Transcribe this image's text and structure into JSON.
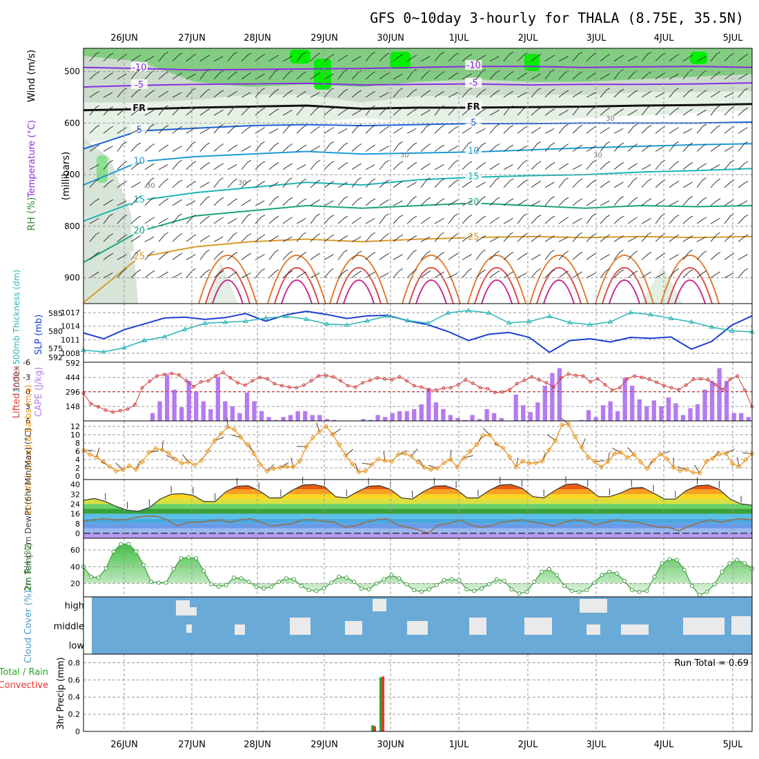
{
  "title": "GFS 0~10day 3-hourly for THALA (8.75E, 35.5N)",
  "colors": {
    "temp_contour": "#8a2be2",
    "fr": "#000000",
    "rh_light": "#e2efe2",
    "rh_mid": "#c8d8c8",
    "rh_green": "#7acb7a",
    "rh_bright": "#00ee00",
    "slp": "#1a3ed0",
    "thickness": "#2ab5b5",
    "lifted": "#d33a3a",
    "cape": "#b57af0",
    "wind": "#e8941c",
    "dewpt": "#9a6a3a",
    "rh2m": "#3c9a3c",
    "cloud_fill": "#6aaad6",
    "precip_total": "#22aa22",
    "precip_conv": "#ee3333",
    "grid": "#999999"
  },
  "chart_data": [
    {
      "id": "upper_air",
      "type": "heatmap",
      "x_dates": [
        "26JUN",
        "27JUN",
        "28JUN",
        "29JUN",
        "30JUN",
        "1JUL",
        "2JUL",
        "3JUL",
        "4JUL",
        "5JUL"
      ],
      "ylabel_parts": [
        "RH (%)",
        "Temperature (°C)",
        "Wind (m/s)",
        "(millibars)"
      ],
      "yticks": [
        500,
        600,
        700,
        800,
        900
      ],
      "ylim": [
        950,
        455
      ],
      "contours": [
        {
          "label": "-10",
          "pressure": [
            492,
            494,
            497,
            496,
            495,
            494,
            492,
            490,
            490,
            492,
            491,
            490,
            492
          ],
          "label_positions": [
            "26JUN-27JUN",
            "29JUN-30JUN"
          ]
        },
        {
          "label": "-5",
          "pressure": [
            530,
            527,
            525,
            524,
            523,
            526,
            525,
            524,
            526,
            525,
            525,
            524,
            522
          ],
          "label_positions": [
            "27JUN-28JUN",
            "2JUL-3JUL"
          ]
        },
        {
          "label": "FR",
          "pressure": [
            575,
            573,
            570,
            568,
            566,
            572,
            570,
            570,
            569,
            568,
            566,
            565,
            563
          ],
          "label_positions": [
            "28JUN",
            "2JUL-3JUL"
          ]
        },
        {
          "label": "5",
          "pressure": [
            650,
            615,
            610,
            605,
            603,
            605,
            603,
            601,
            601,
            600,
            600,
            600,
            598
          ],
          "label_positions": [
            "28JUN",
            "1JUL-2JUL"
          ]
        },
        {
          "label": "10",
          "pressure": [
            720,
            675,
            665,
            660,
            655,
            660,
            658,
            656,
            652,
            648,
            645,
            642,
            640
          ],
          "label_positions": [
            "27JUN-28JUN",
            "2JUL"
          ]
        },
        {
          "label": "15",
          "pressure": [
            790,
            750,
            735,
            725,
            715,
            720,
            710,
            705,
            702,
            700,
            695,
            692,
            688
          ],
          "label_positions": [
            "2JUL"
          ]
        },
        {
          "label": "20",
          "pressure": [
            870,
            810,
            780,
            770,
            760,
            765,
            760,
            755,
            760,
            765,
            760,
            762,
            760
          ],
          "label_positions": [
            "27JUN",
            "2JUL-3JUL"
          ]
        },
        {
          "label": "25",
          "pressure": [
            948,
            860,
            840,
            830,
            825,
            830,
            825,
            822,
            820,
            822,
            820,
            822,
            820
          ],
          "label_positions": [
            "28JUN",
            "3JUL"
          ]
        }
      ],
      "rh_labels": [
        "30",
        "30",
        "30",
        "30",
        "30"
      ]
    },
    {
      "id": "slp_thickness",
      "type": "line",
      "ylabel_left": "1000~500mb Thickness (dm)",
      "ylabel_right": "SLP (mb)",
      "yticks_left": [
        "585",
        "580",
        "575",
        "592"
      ],
      "yticks_right": [
        "1017",
        "1014",
        "1011",
        "1008"
      ],
      "series": [
        {
          "name": "SLP",
          "unit": "mb",
          "values": [
            1012.5,
            1011.2,
            1013.2,
            1014.5,
            1015.8,
            1016,
            1015.5,
            1015.9,
            1016.8,
            1015.1,
            1016.5,
            1017.3,
            1016.6,
            1015.7,
            1016.3,
            1016.4,
            1015.2,
            1014.3,
            1012.8,
            1010.8,
            1012.2,
            1012.6,
            1011.5,
            1008.2,
            1010.8,
            1011.2,
            1010.5,
            1011.5,
            1011.3,
            1011.6,
            1008.9,
            1010.6,
            1014.2,
            1016.3
          ]
        },
        {
          "name": "Thickness",
          "unit": "dm",
          "values": [
            574.5,
            574.0,
            575.2,
            577.3,
            578.4,
            580.5,
            582.3,
            582.6,
            582.9,
            583.8,
            584.3,
            583.5,
            582.1,
            581.8,
            583.0,
            584.4,
            583.1,
            582.3,
            585.3,
            586.0,
            585.3,
            582.4,
            582.8,
            584.3,
            582.5,
            581.9,
            582.7,
            585.4,
            584.8,
            583.7,
            582.7,
            581.2,
            580.1,
            579.8
          ]
        }
      ]
    },
    {
      "id": "cape_li",
      "type": "bar",
      "ylabel_left": "Lifted Index",
      "ylabel_right": "CAPE (J/kg)",
      "yticks_left": [
        "-6",
        "-3",
        "0",
        "3",
        "6"
      ],
      "yticks_right": [
        "592",
        "444",
        "296",
        "148"
      ],
      "series": [
        {
          "name": "CAPE",
          "unit": "J/kg",
          "values": [
            0,
            0,
            0,
            0,
            0,
            0,
            0,
            0,
            0,
            80,
            200,
            470,
            320,
            140,
            410,
            300,
            200,
            120,
            450,
            200,
            150,
            80,
            290,
            200,
            100,
            40,
            10,
            40,
            60,
            100,
            100,
            60,
            60,
            20,
            10,
            0,
            0,
            0,
            20,
            10,
            60,
            40,
            80,
            100,
            100,
            120,
            170,
            330,
            190,
            120,
            60,
            30,
            10,
            60,
            20,
            120,
            80,
            30,
            0,
            270,
            160,
            90,
            190,
            360,
            490,
            540,
            0,
            0,
            10,
            110,
            40,
            160,
            200,
            100,
            440,
            360,
            220,
            150,
            210,
            150,
            240,
            180,
            60,
            130,
            170,
            320,
            410,
            540,
            410,
            80,
            80,
            40
          ]
        },
        {
          "name": "Lifted Index",
          "unit": "",
          "values": [
            0.3,
            2.5,
            3.1,
            3.8,
            4.2,
            3.9,
            3.6,
            2.7,
            -0.8,
            -2.1,
            -3.2,
            -3.5,
            -3.7,
            -3.4,
            -2.2,
            -1.0,
            -2.0,
            -2.2,
            -3.2,
            -3.9,
            -2.8,
            -1.8,
            -1.3,
            -2.2,
            -2.9,
            -2.6,
            -1.6,
            -1.2,
            -0.9,
            -0.8,
            -1.3,
            -2.2,
            -3.2,
            -3.3,
            -3.0,
            -2.2,
            -1.2,
            -0.9,
            -1.8,
            -2.3,
            -2.8,
            -2.6,
            -2.4,
            -3.0,
            -2.2,
            -1.2,
            -0.9,
            -0.4,
            -0.3,
            -0.7,
            -0.8,
            -1.4,
            -2.4,
            -1.7,
            -0.8,
            -0.6,
            0.2,
            0.1,
            -0.4,
            -1.6,
            -2.3,
            -3.0,
            -2.4,
            -1.8,
            -0.9,
            -2.8,
            -3.6,
            -3.3,
            -3.2,
            -2.0,
            -2.6,
            -1.4,
            -0.3,
            -0.8,
            -2.6,
            -3.2,
            -2.9,
            -2.5,
            -1.9,
            -1.2,
            -0.8,
            -0.4,
            -1.3,
            -2.5,
            -2.6,
            -2.4,
            -1.4,
            -0.4,
            -2.5,
            -3.2,
            -0.3,
            3.1
          ]
        }
      ]
    },
    {
      "id": "wind10m",
      "type": "line",
      "ylabel": "10m Wind Speed & Barbs (m/s)",
      "yticks": [
        "0",
        "2",
        "4",
        "6",
        "8",
        "10",
        "12"
      ],
      "ylim": [
        0,
        12.5
      ],
      "series": [
        {
          "name": "10m Wind Speed",
          "unit": "m/s",
          "values": [
            6.2,
            5.2,
            4.6,
            3.5,
            2.3,
            1.2,
            1.6,
            2.5,
            1.6,
            3.5,
            5.7,
            6.7,
            6.3,
            5.5,
            4.1,
            3.1,
            3.4,
            2.7,
            3.8,
            6.1,
            8.6,
            10.3,
            11.8,
            11.3,
            9.4,
            7.6,
            5.4,
            2.8,
            1.2,
            1.8,
            2.1,
            2.3,
            2.2,
            3.6,
            7.1,
            9.3,
            10.7,
            12.0,
            10.1,
            7.6,
            5.0,
            2.9,
            1.0,
            1.2,
            2.8,
            4.1,
            3.7,
            3.5,
            5.2,
            5.5,
            4.8,
            3.4,
            2.1,
            1.6,
            1.9,
            3.2,
            4.0,
            2.2,
            4.4,
            6.0,
            7.6,
            9.8,
            9.9,
            7.8,
            6.8,
            4.7,
            2.2,
            3.6,
            3.1,
            3.2,
            3.6,
            6.3,
            8.6,
            12.4,
            12.6,
            9.5,
            6.9,
            4.6,
            3.5,
            2.2,
            3.5,
            5.4,
            5.7,
            4.5,
            5.2,
            3.4,
            1.8,
            3.8,
            5.3,
            4.2,
            2.1,
            1.3,
            1.6,
            0.9,
            0.7,
            3.5,
            4.3,
            5.3,
            5.5,
            3.0,
            2.3,
            3.9,
            5.4
          ]
        }
      ]
    },
    {
      "id": "temp2m",
      "type": "area",
      "ylabel": "2m Temp 2m DewPt (6hr Min/Max) (°C)",
      "yticks": [
        "0",
        "8",
        "16",
        "24",
        "32",
        "40"
      ],
      "ylim": [
        -4,
        44
      ],
      "series": [
        {
          "name": "2m Temp",
          "unit": "°C",
          "values": [
            27,
            28.5,
            26,
            22,
            19,
            18,
            21,
            28,
            32,
            32.5,
            31,
            26,
            26,
            34,
            38.5,
            39,
            35,
            29,
            29,
            35,
            39.5,
            40,
            38,
            30,
            29,
            34,
            38.5,
            39,
            36,
            29,
            28,
            34,
            38.5,
            39,
            36,
            29,
            29,
            35,
            39.5,
            40,
            37,
            30,
            29,
            35,
            40,
            40.5,
            37,
            30,
            30,
            33,
            37,
            37.5,
            33,
            28,
            28,
            35,
            39,
            39.5,
            36,
            28,
            24,
            23
          ]
        },
        {
          "name": "2m DewPt",
          "unit": "°C",
          "values": [
            10,
            11,
            12,
            11,
            11,
            13,
            14,
            14,
            11,
            6,
            9,
            9,
            10,
            11,
            9,
            11,
            12,
            9,
            6,
            7,
            8,
            11,
            11,
            10,
            9,
            5,
            6,
            9,
            11,
            12,
            7,
            5,
            3,
            0,
            7,
            8,
            11,
            7,
            5,
            6,
            9,
            10,
            11,
            9,
            8,
            6,
            9,
            11,
            10,
            7,
            9,
            11,
            10,
            9,
            7,
            5,
            5,
            2,
            6,
            9,
            11,
            9,
            11,
            12,
            11
          ]
        }
      ]
    },
    {
      "id": "rh2m",
      "type": "area",
      "ylabel": "2m RH (%)",
      "yticks": [
        "20",
        "40",
        "60"
      ],
      "ylim": [
        4,
        74
      ],
      "series": [
        {
          "name": "2m RH",
          "unit": "%",
          "values": [
            40,
            28,
            27,
            38,
            58,
            67,
            67,
            58,
            42,
            22,
            21,
            21,
            37,
            50,
            51,
            50,
            35,
            19,
            16,
            18,
            27,
            26,
            22,
            16,
            14,
            16,
            22,
            26,
            25,
            17,
            12,
            11,
            14,
            21,
            28,
            27,
            22,
            14,
            13,
            20,
            25,
            30,
            26,
            19,
            12,
            10,
            13,
            18,
            24,
            25,
            24,
            13,
            11,
            14,
            19,
            25,
            23,
            13,
            8,
            10,
            22,
            34,
            37,
            30,
            17,
            11,
            10,
            12,
            21,
            30,
            34,
            32,
            23,
            12,
            10,
            11,
            28,
            44,
            49,
            48,
            36,
            17,
            6,
            10,
            19,
            34,
            44,
            48,
            44,
            38
          ]
        }
      ]
    },
    {
      "id": "cloud",
      "type": "heatmap",
      "ylabel": "Cloud Cover (%)",
      "yticks": [
        "high",
        "middle",
        "low"
      ],
      "layers": [
        "high",
        "middle",
        "low"
      ]
    },
    {
      "id": "precip",
      "type": "bar",
      "ylabel_parts": [
        "3hr Precip (mm)",
        "Total / Rain",
        "Convective"
      ],
      "yticks": [
        "0",
        "0.2",
        "0.4",
        "0.6",
        "0.8"
      ],
      "ylim": [
        0,
        0.9
      ],
      "annotation": "Run Total = 0.69",
      "series": [
        {
          "name": "Total",
          "values": [
            0.07,
            0.63
          ]
        },
        {
          "name": "Convective",
          "values": [
            0.06,
            0.64
          ]
        }
      ]
    }
  ]
}
